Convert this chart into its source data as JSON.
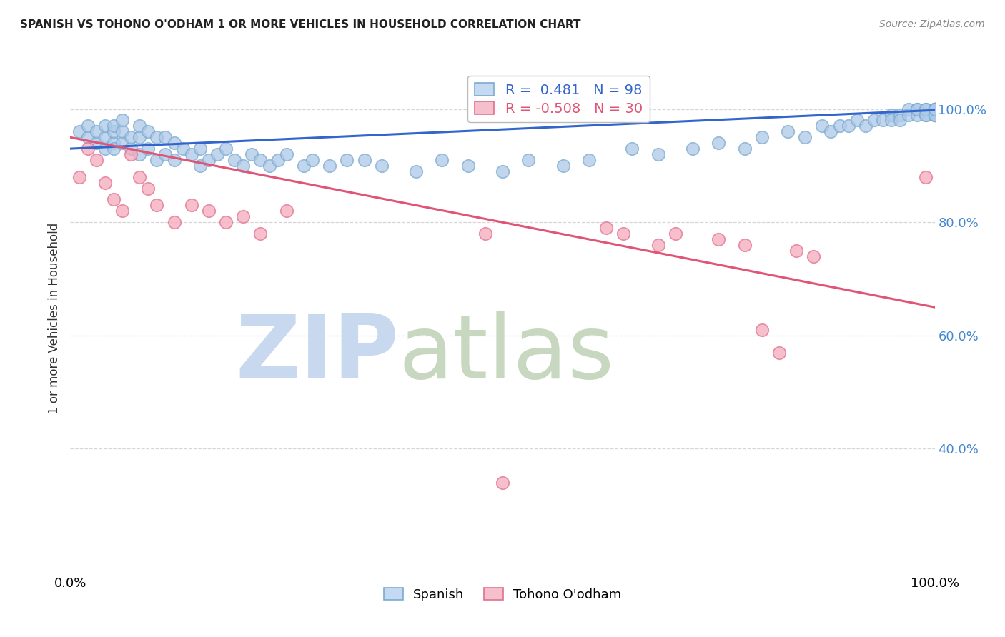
{
  "title": "SPANISH VS TOHONO O'ODHAM 1 OR MORE VEHICLES IN HOUSEHOLD CORRELATION CHART",
  "source": "Source: ZipAtlas.com",
  "ylabel": "1 or more Vehicles in Household",
  "y_tick_values": [
    0.4,
    0.6,
    0.8,
    1.0
  ],
  "xlim": [
    0.0,
    1.0
  ],
  "ylim": [
    0.18,
    1.08
  ],
  "spanish_R": 0.481,
  "spanish_N": 98,
  "tohono_R": -0.508,
  "tohono_N": 30,
  "spanish_color": "#adc9e8",
  "tohono_color": "#f5aabb",
  "spanish_edge_color": "#7aaad0",
  "tohono_edge_color": "#e07090",
  "spanish_line_color": "#3366cc",
  "tohono_line_color": "#e05575",
  "watermark_zip_color": "#c8d8ee",
  "watermark_atlas_color": "#c8d8c0",
  "background_color": "#ffffff",
  "grid_color": "#cccccc",
  "spanish_x": [
    0.01,
    0.02,
    0.02,
    0.03,
    0.03,
    0.04,
    0.04,
    0.04,
    0.05,
    0.05,
    0.05,
    0.05,
    0.06,
    0.06,
    0.06,
    0.07,
    0.07,
    0.08,
    0.08,
    0.08,
    0.09,
    0.09,
    0.1,
    0.1,
    0.11,
    0.11,
    0.12,
    0.12,
    0.13,
    0.14,
    0.15,
    0.15,
    0.16,
    0.17,
    0.18,
    0.19,
    0.2,
    0.21,
    0.22,
    0.23,
    0.24,
    0.25,
    0.27,
    0.28,
    0.3,
    0.32,
    0.34,
    0.36,
    0.4,
    0.43,
    0.46,
    0.5,
    0.53,
    0.57,
    0.6,
    0.65,
    0.68,
    0.72,
    0.75,
    0.78,
    0.8,
    0.83,
    0.85,
    0.87,
    0.88,
    0.89,
    0.9,
    0.91,
    0.92,
    0.93,
    0.94,
    0.95,
    0.95,
    0.96,
    0.96,
    0.97,
    0.97,
    0.98,
    0.98,
    0.98,
    0.99,
    0.99,
    0.99,
    0.99,
    1.0,
    1.0,
    1.0,
    1.0,
    1.0,
    1.0,
    1.0,
    1.0,
    1.0,
    1.0,
    1.0,
    1.0,
    1.0,
    1.0
  ],
  "spanish_y": [
    0.96,
    0.95,
    0.97,
    0.94,
    0.96,
    0.93,
    0.95,
    0.97,
    0.94,
    0.96,
    0.97,
    0.93,
    0.94,
    0.96,
    0.98,
    0.93,
    0.95,
    0.92,
    0.95,
    0.97,
    0.93,
    0.96,
    0.91,
    0.95,
    0.92,
    0.95,
    0.91,
    0.94,
    0.93,
    0.92,
    0.9,
    0.93,
    0.91,
    0.92,
    0.93,
    0.91,
    0.9,
    0.92,
    0.91,
    0.9,
    0.91,
    0.92,
    0.9,
    0.91,
    0.9,
    0.91,
    0.91,
    0.9,
    0.89,
    0.91,
    0.9,
    0.89,
    0.91,
    0.9,
    0.91,
    0.93,
    0.92,
    0.93,
    0.94,
    0.93,
    0.95,
    0.96,
    0.95,
    0.97,
    0.96,
    0.97,
    0.97,
    0.98,
    0.97,
    0.98,
    0.98,
    0.99,
    0.98,
    0.99,
    0.98,
    1.0,
    0.99,
    1.0,
    0.99,
    1.0,
    1.0,
    0.99,
    1.0,
    0.99,
    1.0,
    1.0,
    0.99,
    1.0,
    1.0,
    0.99,
    1.0,
    1.0,
    0.99,
    1.0,
    1.0,
    1.0,
    0.99,
    1.0
  ],
  "tohono_x": [
    0.01,
    0.02,
    0.03,
    0.04,
    0.05,
    0.06,
    0.07,
    0.08,
    0.09,
    0.1,
    0.12,
    0.14,
    0.16,
    0.18,
    0.2,
    0.22,
    0.25,
    0.48,
    0.62,
    0.64,
    0.68,
    0.7,
    0.75,
    0.78,
    0.8,
    0.82,
    0.84,
    0.86,
    0.99,
    0.5
  ],
  "tohono_y": [
    0.88,
    0.93,
    0.91,
    0.87,
    0.84,
    0.82,
    0.92,
    0.88,
    0.86,
    0.83,
    0.8,
    0.83,
    0.82,
    0.8,
    0.81,
    0.78,
    0.82,
    0.78,
    0.79,
    0.78,
    0.76,
    0.78,
    0.77,
    0.76,
    0.61,
    0.57,
    0.75,
    0.74,
    0.88,
    0.34
  ],
  "spanish_trend_x": [
    0.0,
    1.0
  ],
  "spanish_trend_y": [
    0.93,
    0.998
  ],
  "tohono_trend_x": [
    0.0,
    1.0
  ],
  "tohono_trend_y": [
    0.95,
    0.65
  ]
}
